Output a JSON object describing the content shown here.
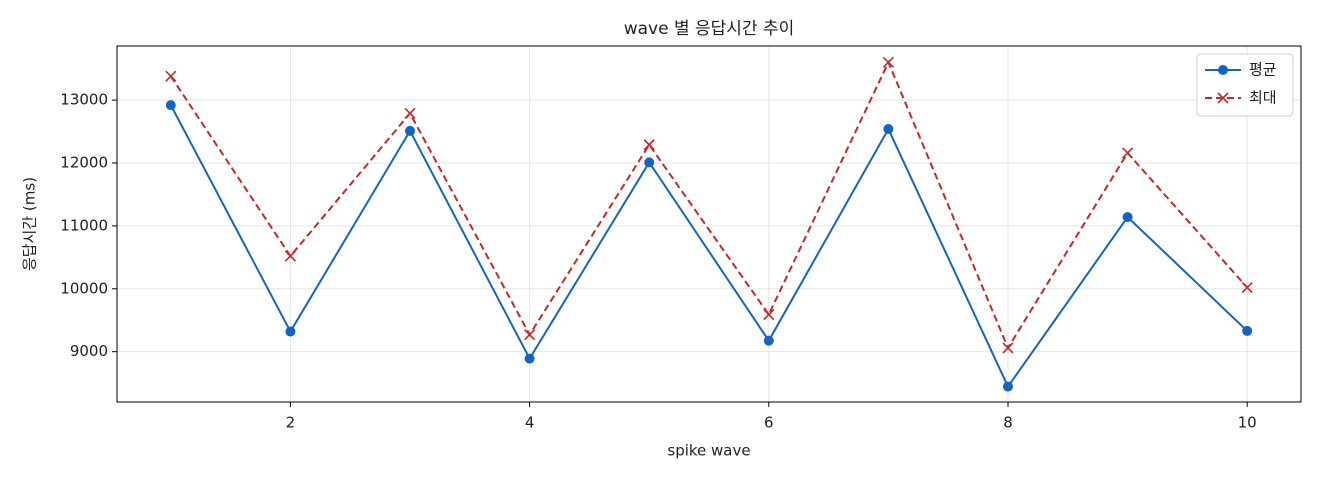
{
  "chart_data": {
    "type": "line",
    "title": "wave 별 응답시간 추이",
    "xlabel": "spike wave",
    "ylabel": "응답시간 (ms)",
    "x": [
      1,
      2,
      3,
      4,
      5,
      6,
      7,
      8,
      9,
      10
    ],
    "series": [
      {
        "name": "평균",
        "color": "#1565c0",
        "linestyle": "solid",
        "marker": "o",
        "values": [
          12920,
          9320,
          12510,
          8890,
          12010,
          9175,
          12540,
          8445,
          11140,
          9330
        ]
      },
      {
        "name": "최대",
        "color": "#c62828",
        "linestyle": "dashed",
        "marker": "x",
        "values": [
          13380,
          10520,
          12790,
          9270,
          12290,
          9590,
          13600,
          9060,
          12160,
          10020
        ]
      }
    ],
    "xlim": [
      0.55,
      10.45
    ],
    "xticks": [
      2,
      4,
      6,
      8,
      10
    ],
    "ylim": [
      8200,
      13860
    ],
    "yticks": [
      9000,
      10000,
      11000,
      12000,
      13000
    ],
    "grid": true,
    "legend": "upper right"
  }
}
